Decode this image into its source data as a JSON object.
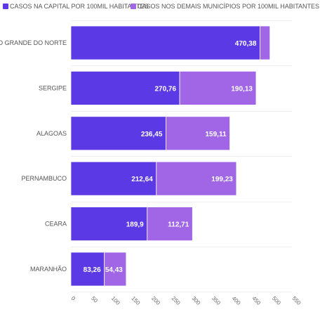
{
  "chart_data": {
    "type": "bar",
    "orientation": "horizontal",
    "stacked": true,
    "categories": [
      "RIO GRANDE DO NORTE",
      "SERGIPE",
      "ALAGOAS",
      "PERNAMBUCO",
      "CEARA",
      "MARANHÃO"
    ],
    "series": [
      {
        "name": "CASOS NA CAPITAL POR 100MIL HABITANTES",
        "color": "#5b3ae6",
        "values": [
          470.38,
          270.76,
          236.45,
          212.64,
          189.9,
          83.26
        ],
        "labels": [
          "470,38",
          "270,76",
          "236,45",
          "212,64",
          "189,9",
          "83,26"
        ]
      },
      {
        "name": "CASOS NOS DEMAIS MUNICÍPIOS POR 100MIL HABITANTES",
        "color": "#a066e6",
        "values": [
          25,
          190.13,
          159.11,
          199.23,
          112.71,
          54.43
        ],
        "labels": [
          "",
          "190,13",
          "159,11",
          "199,23",
          "112,71",
          "54,43"
        ]
      }
    ],
    "xlim": [
      0,
      550
    ],
    "xticks": [
      "0",
      "50",
      "100",
      "150",
      "200",
      "250",
      "300",
      "350",
      "400",
      "450",
      "500",
      "550"
    ],
    "grid": true,
    "legend_position": "top-left",
    "title": "",
    "xlabel": "",
    "ylabel": ""
  }
}
